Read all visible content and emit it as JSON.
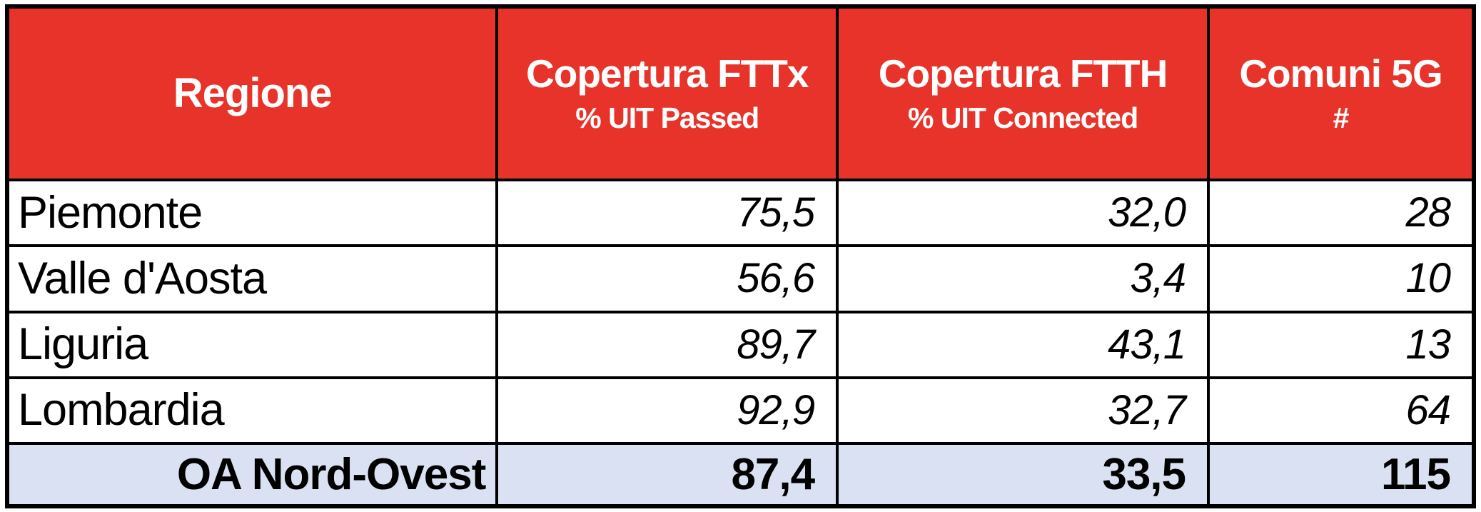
{
  "colors": {
    "header_bg": "#E8332A",
    "header_text": "#FFFFFF",
    "total_row_bg": "#D9E1F2",
    "border": "#000000",
    "body_text": "#000000"
  },
  "table": {
    "columns": [
      {
        "title": "Regione",
        "subtitle": ""
      },
      {
        "title": "Copertura FTTx",
        "subtitle": "% UIT Passed"
      },
      {
        "title": "Copertura FTTH",
        "subtitle": "% UIT Connected"
      },
      {
        "title": "Comuni 5G",
        "subtitle": "#"
      }
    ],
    "rows": [
      {
        "region": "Piemonte",
        "fttx": "75,5",
        "ftth": "32,0",
        "comuni_5g": "28"
      },
      {
        "region": "Valle d'Aosta",
        "fttx": "56,6",
        "ftth": "3,4",
        "comuni_5g": "10"
      },
      {
        "region": "Liguria",
        "fttx": "89,7",
        "ftth": "43,1",
        "comuni_5g": "13"
      },
      {
        "region": "Lombardia",
        "fttx": "92,9",
        "ftth": "32,7",
        "comuni_5g": "64"
      }
    ],
    "total": {
      "region": "OA Nord-Ovest",
      "fttx": "87,4",
      "ftth": "33,5",
      "comuni_5g": "115"
    }
  },
  "chart_data": {
    "type": "table",
    "title": "",
    "columns": [
      "Regione",
      "Copertura FTTx % UIT Passed",
      "Copertura FTTH % UIT Connected",
      "Comuni 5G #"
    ],
    "rows": [
      [
        "Piemonte",
        75.5,
        32.0,
        28
      ],
      [
        "Valle d'Aosta",
        56.6,
        3.4,
        10
      ],
      [
        "Liguria",
        89.7,
        43.1,
        13
      ],
      [
        "Lombardia",
        92.9,
        32.7,
        64
      ]
    ],
    "total_row": [
      "OA Nord-Ovest",
      87.4,
      33.5,
      115
    ],
    "notes": "Decimal values shown with comma separator; totals row highlighted"
  }
}
